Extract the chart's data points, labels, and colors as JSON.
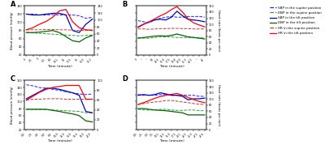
{
  "panels": [
    {
      "label": "A",
      "xtick_labels": [
        "0",
        "2.5",
        "4",
        "6.1",
        "8.1",
        "10.1",
        "12",
        "13.5",
        "14",
        "14.5",
        "15.2"
      ],
      "bp_ylim": [
        20,
        140
      ],
      "hr_ylim": [
        0,
        140
      ],
      "bp_yticks": [
        20,
        40,
        60,
        80,
        100,
        120,
        140
      ],
      "hr_yticks": [
        0,
        20,
        40,
        60,
        80,
        100,
        120,
        140
      ],
      "SBP_supine": [
        120,
        120,
        118,
        118,
        119,
        118,
        118,
        118,
        116,
        110,
        112
      ],
      "DBP_supine": [
        75,
        74,
        73,
        72,
        71,
        70,
        69,
        68,
        67,
        68,
        69
      ],
      "SBP_tilt": [
        120,
        118,
        118,
        120,
        122,
        122,
        118,
        80,
        75,
        95,
        108
      ],
      "DBP_tilt": [
        75,
        75,
        76,
        78,
        80,
        75,
        65,
        55,
        52,
        62,
        68
      ],
      "HR_supine": [
        72,
        72,
        72,
        73,
        73,
        72,
        72,
        71,
        70,
        70,
        72
      ],
      "HR_tilt": [
        72,
        78,
        88,
        96,
        108,
        126,
        130,
        95,
        78,
        72,
        70
      ],
      "xlabel": "Time (minute)"
    },
    {
      "label": "B",
      "xtick_labels": [
        "0",
        "~",
        "~",
        "10",
        "12.5",
        "15.0",
        "17.5",
        "18.8",
        "20.0",
        "21.3",
        "22.5",
        "~",
        "22"
      ],
      "bp_ylim": [
        20,
        160
      ],
      "hr_ylim": [
        0,
        160
      ],
      "bp_yticks": [
        20,
        40,
        60,
        80,
        100,
        120,
        140,
        160
      ],
      "hr_yticks": [
        0,
        20,
        40,
        60,
        80,
        100,
        120,
        140,
        160
      ],
      "SBP_supine": [
        118,
        115,
        112,
        120,
        125,
        128,
        130,
        128,
        128,
        130,
        130,
        130,
        128
      ],
      "DBP_supine": [
        70,
        68,
        68,
        70,
        72,
        72,
        72,
        70,
        70,
        70,
        70,
        70,
        68
      ],
      "SBP_tilt": [
        100,
        108,
        115,
        120,
        122,
        120,
        128,
        145,
        132,
        122,
        120,
        118,
        115
      ],
      "DBP_tilt": [
        68,
        70,
        72,
        74,
        75,
        74,
        76,
        80,
        76,
        72,
        70,
        68,
        66
      ],
      "HR_supine": [
        85,
        85,
        84,
        85,
        86,
        86,
        87,
        87,
        86,
        86,
        85,
        85,
        85
      ],
      "HR_tilt": [
        90,
        100,
        108,
        118,
        128,
        136,
        148,
        158,
        140,
        118,
        105,
        98,
        92
      ],
      "xlabel": "Time (minute)"
    },
    {
      "label": "C",
      "xtick_labels": [
        "0.0",
        "2.0",
        "4.0",
        "6.0",
        "8.0",
        "10.0",
        "12.0",
        "14.0",
        "16.0",
        "18.0",
        "20.0"
      ],
      "bp_ylim": [
        20,
        160
      ],
      "hr_ylim": [
        0,
        100
      ],
      "bp_yticks": [
        20,
        40,
        60,
        80,
        100,
        120,
        140,
        160
      ],
      "hr_yticks": [
        0,
        20,
        40,
        60,
        80,
        100
      ],
      "SBP_supine": [
        148,
        145,
        140,
        138,
        135,
        132,
        128,
        125,
        122,
        120,
        122
      ],
      "DBP_supine": [
        78,
        78,
        78,
        77,
        76,
        75,
        74,
        73,
        72,
        68,
        68
      ],
      "SBP_tilt": [
        108,
        118,
        128,
        138,
        138,
        135,
        130,
        125,
        118,
        72,
        68
      ],
      "DBP_tilt": [
        78,
        78,
        78,
        78,
        75,
        72,
        68,
        65,
        60,
        45,
        42
      ],
      "HR_supine": [
        60,
        62,
        62,
        63,
        63,
        63,
        62,
        62,
        62,
        62,
        62
      ],
      "HR_tilt": [
        60,
        68,
        76,
        82,
        86,
        88,
        90,
        90,
        90,
        62,
        62
      ],
      "xlabel": "Time (minute)"
    },
    {
      "label": "D",
      "xtick_labels": [
        "0.0",
        "2.5",
        "5.0",
        "7.5",
        "10.1",
        "12.5",
        "15.0",
        "17.5",
        "20.1",
        "22.5",
        "25.0",
        "27.5",
        "27.6"
      ],
      "bp_ylim": [
        20,
        160
      ],
      "hr_ylim": [
        0,
        160
      ],
      "bp_yticks": [
        20,
        40,
        60,
        80,
        100,
        120,
        140,
        160
      ],
      "hr_yticks": [
        0,
        20,
        40,
        60,
        80,
        100,
        120,
        140,
        160
      ],
      "SBP_supine": [
        120,
        118,
        118,
        118,
        120,
        120,
        118,
        118,
        118,
        118,
        118,
        115,
        115
      ],
      "DBP_supine": [
        78,
        76,
        76,
        76,
        78,
        78,
        76,
        75,
        75,
        76,
        76,
        74,
        74
      ],
      "SBP_tilt": [
        118,
        120,
        118,
        120,
        125,
        122,
        118,
        118,
        115,
        105,
        108,
        108,
        110
      ],
      "DBP_tilt": [
        80,
        80,
        78,
        76,
        75,
        74,
        72,
        70,
        68,
        62,
        62,
        62,
        62
      ],
      "HR_supine": [
        82,
        85,
        88,
        90,
        92,
        95,
        95,
        93,
        90,
        88,
        85,
        83,
        82
      ],
      "HR_tilt": [
        82,
        88,
        95,
        102,
        108,
        112,
        115,
        118,
        112,
        105,
        98,
        92,
        88
      ],
      "xlabel": "Time (minute)"
    }
  ],
  "colors": {
    "SBP_supine": "#1a1aff",
    "DBP_supine": "#339933",
    "SBP_tilt": "#0000cc",
    "DBP_tilt": "#006600",
    "HR_supine": "#cc3333",
    "HR_tilt": "#ff0000"
  },
  "legend_entries": [
    {
      "label": "SBP in the supine position",
      "color": "#1a1aff",
      "ls": "--"
    },
    {
      "label": "DBP in the supine position",
      "color": "#339933",
      "ls": "--"
    },
    {
      "label": "SBP in the tilt position",
      "color": "#0000cc",
      "ls": "-"
    },
    {
      "label": "DBP in the tilt position",
      "color": "#006600",
      "ls": "-"
    },
    {
      "label": "HR in the supine position",
      "color": "#cc3333",
      "ls": "--"
    },
    {
      "label": "HR in the tilt position",
      "color": "#ff0000",
      "ls": "-"
    }
  ],
  "bp_ylabel": "Blood pressure (mmHg)",
  "hr_ylabel": "Heart rate (beats per min)"
}
